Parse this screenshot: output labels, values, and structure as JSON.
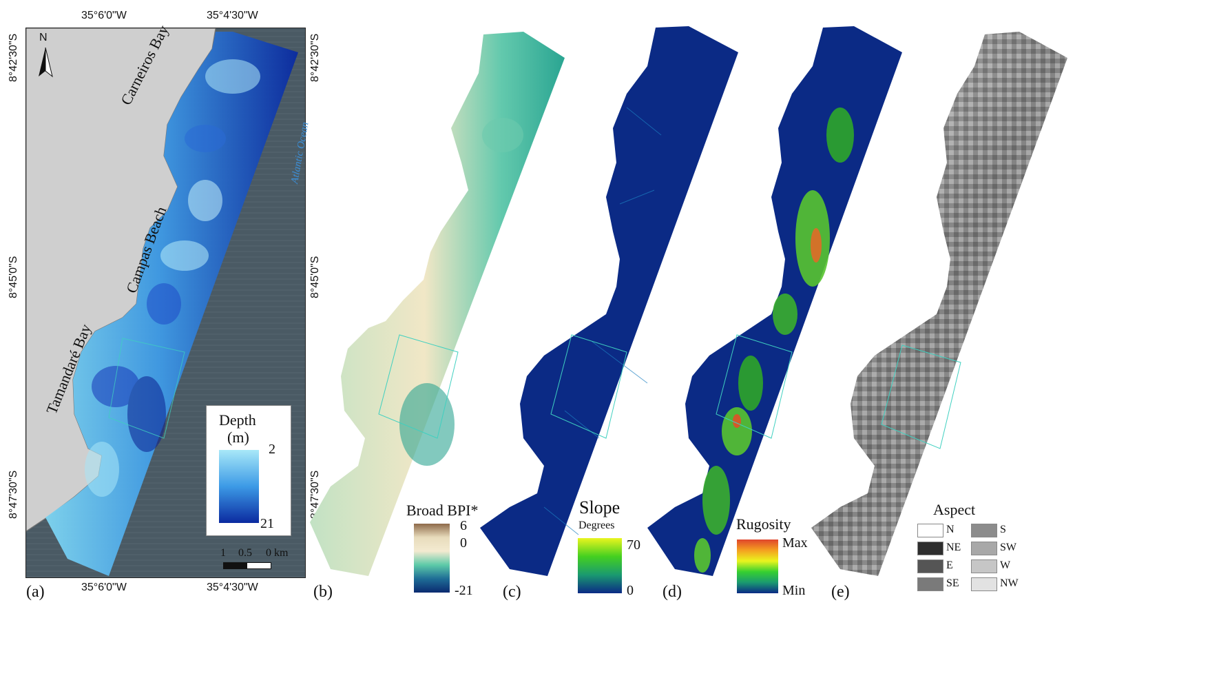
{
  "panels": {
    "a": {
      "label": "(a)",
      "lon_ticks": [
        "35°6'0\"W",
        "35°4'30\"W"
      ],
      "lat_ticks": [
        "8°42'30\"S",
        "8°45'0\"S",
        "8°47'30\"S"
      ],
      "place_names": [
        "Carneiros Bay",
        "Campas Beach",
        "Tamandaré Bay"
      ],
      "ocean_label": "Atlantic Ocean",
      "north_label": "N",
      "legend": {
        "title": "Depth",
        "unit": "(m)",
        "max": "2",
        "min": "21"
      },
      "scale_bar": {
        "labels": [
          "1",
          "0.5",
          "0 km"
        ]
      }
    },
    "b": {
      "label": "(b)",
      "legend": {
        "title": "Broad BPI*",
        "max": "6",
        "mid": "0",
        "min": "-21"
      }
    },
    "c": {
      "label": "(c)",
      "legend": {
        "title": "Slope",
        "subtitle": "Degrees",
        "max": "70",
        "min": "0"
      }
    },
    "d": {
      "label": "(d)",
      "legend": {
        "title": "Rugosity",
        "max": "Max",
        "min": "Min"
      }
    },
    "e": {
      "label": "(e)",
      "legend": {
        "title": "Aspect",
        "classes": [
          {
            "name": "N",
            "color": "#ffffff"
          },
          {
            "name": "NE",
            "color": "#2e2e2e"
          },
          {
            "name": "E",
            "color": "#555555"
          },
          {
            "name": "SE",
            "color": "#7a7a7a"
          },
          {
            "name": "S",
            "color": "#8c8c8c"
          },
          {
            "name": "SW",
            "color": "#a8a8a8"
          },
          {
            "name": "W",
            "color": "#c6c6c6"
          },
          {
            "name": "NW",
            "color": "#e2e2e2"
          }
        ]
      }
    }
  },
  "colors": {
    "land": "#cfcfcf",
    "sea": "#4a5a64",
    "depth_shallow": "#9fe0f5",
    "depth_deep": "#0a2aa0",
    "slope_bg": "#0b2a85"
  }
}
